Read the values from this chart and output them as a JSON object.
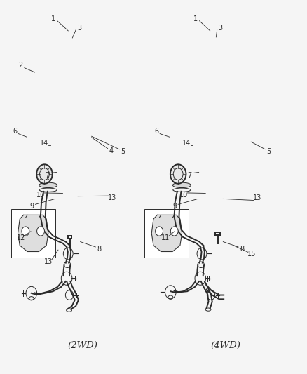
{
  "background_color": "#f5f5f5",
  "figure_width": 4.39,
  "figure_height": 5.33,
  "dpi": 100,
  "line_color": "#2a2a2a",
  "label_fontsize": 7.0,
  "caption_fontsize": 9.5,
  "caption_2wd": [
    0.265,
    0.072
  ],
  "caption_4wd": [
    0.735,
    0.072
  ],
  "lw_tube": 1.4,
  "lw_thin": 0.7,
  "lw_label": 0.6
}
